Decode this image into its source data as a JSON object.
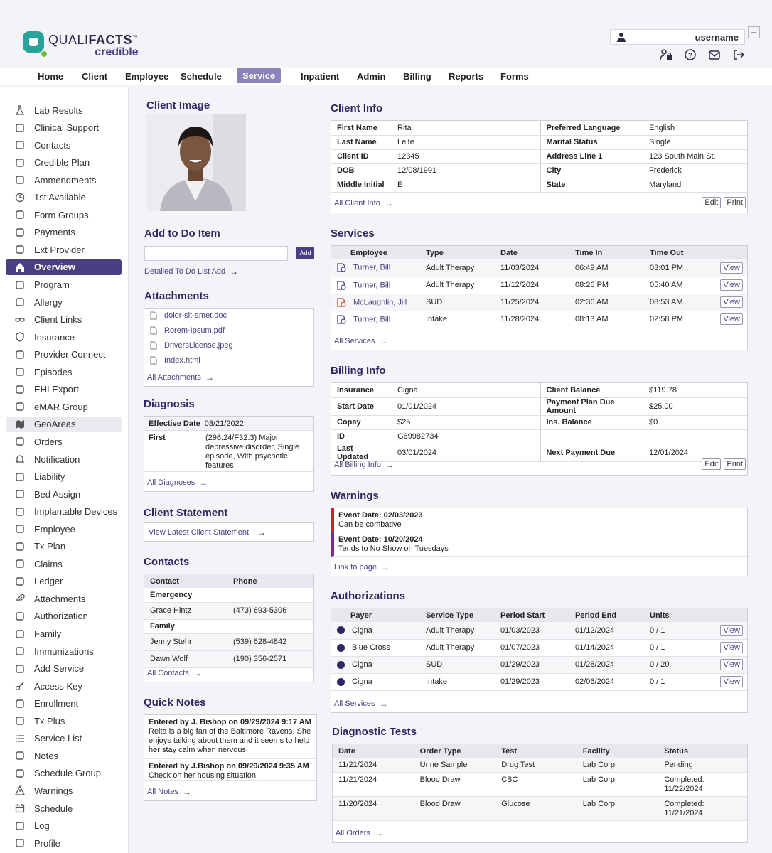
{
  "brand": {
    "name_light": "QUALI",
    "name_bold": "FACTS",
    "tm": "™",
    "product": "credible",
    "colors": {
      "primary": "#4b3f84",
      "accent": "#27a39a",
      "green": "#6bbf3c",
      "warning_red": "#d0202e",
      "warning_purple": "#7a2e8e"
    }
  },
  "user": {
    "username": "username",
    "add_label": "+",
    "icons": [
      "user-icon",
      "user-settings-icon",
      "help-icon",
      "mail-icon",
      "logout-icon"
    ]
  },
  "nav": {
    "items": [
      "Home",
      "Client",
      "Employee",
      "Schedule",
      "Service",
      "Inpatient",
      "Admin",
      "Billing",
      "Reports",
      "Forms"
    ],
    "active": "Service"
  },
  "sidebar": {
    "items": [
      {
        "label": "Lab Results",
        "icon": "flask-icon"
      },
      {
        "label": "Clinical Support",
        "icon": "hand-support-icon"
      },
      {
        "label": "Contacts",
        "icon": "contacts-icon"
      },
      {
        "label": "Credible Plan",
        "icon": "plan-icon"
      },
      {
        "label": "Ammendments",
        "icon": "document-icon"
      },
      {
        "label": "1st Available",
        "icon": "clock-icon"
      },
      {
        "label": "Form Groups",
        "icon": "forms-icon"
      },
      {
        "label": "Payments",
        "icon": "payment-icon"
      },
      {
        "label": "Ext Provider",
        "icon": "medkit-icon"
      },
      {
        "label": "Overview",
        "icon": "home-icon"
      },
      {
        "label": "Program",
        "icon": "building-icon"
      },
      {
        "label": "Allergy",
        "icon": "allergy-icon"
      },
      {
        "label": "Client Links",
        "icon": "link-icon"
      },
      {
        "label": "Insurance",
        "icon": "shield-icon"
      },
      {
        "label": "Provider Connect",
        "icon": "provider-icon"
      },
      {
        "label": "Episodes",
        "icon": "episodes-icon"
      },
      {
        "label": "EHI Export",
        "icon": "export-icon"
      },
      {
        "label": "eMAR Group",
        "icon": "group-icon"
      },
      {
        "label": "GeoAreas",
        "icon": "map-icon"
      },
      {
        "label": "Orders",
        "icon": "clipboard-icon"
      },
      {
        "label": "Notification",
        "icon": "bell-icon"
      },
      {
        "label": "Liability",
        "icon": "liability-icon"
      },
      {
        "label": "Bed Assign",
        "icon": "bed-icon"
      },
      {
        "label": "Implantable Devices",
        "icon": "device-icon"
      },
      {
        "label": "Employee",
        "icon": "badge-icon"
      },
      {
        "label": "Tx Plan",
        "icon": "tx-plan-icon"
      },
      {
        "label": "Claims",
        "icon": "claims-icon"
      },
      {
        "label": "Ledger",
        "icon": "ledger-icon"
      },
      {
        "label": "Attachments",
        "icon": "paperclip-icon"
      },
      {
        "label": "Authorization",
        "icon": "authorization-icon"
      },
      {
        "label": "Family",
        "icon": "family-icon"
      },
      {
        "label": "Immunizations",
        "icon": "syringe-icon"
      },
      {
        "label": "Add Service",
        "icon": "add-service-icon"
      },
      {
        "label": "Access Key",
        "icon": "key-icon"
      },
      {
        "label": "Enrollment",
        "icon": "enrollment-icon"
      },
      {
        "label": "Tx Plus",
        "icon": "tx-plus-icon"
      },
      {
        "label": "Service List",
        "icon": "list-icon"
      },
      {
        "label": "Notes",
        "icon": "notes-icon"
      },
      {
        "label": "Schedule Group",
        "icon": "schedule-group-icon"
      },
      {
        "label": "Warnings",
        "icon": "warning-icon"
      },
      {
        "label": "Schedule",
        "icon": "calendar-icon"
      },
      {
        "label": "Log",
        "icon": "log-icon"
      },
      {
        "label": "Profile",
        "icon": "profile-icon"
      }
    ],
    "active": "Overview",
    "highlighted": "GeoAreas"
  },
  "client_image": {
    "title": "Client Image"
  },
  "todo": {
    "title": "Add to Do Item",
    "input_value": "",
    "add_label": "Add",
    "link": "Detailed To Do List Add"
  },
  "attachments": {
    "title": "Attachments",
    "files": [
      {
        "name": "dolor-sit-amet.doc",
        "icon": "doc-file-icon"
      },
      {
        "name": "Rorem-Ipsum.pdf",
        "icon": "pdf-file-icon"
      },
      {
        "name": "DriversLicense.jpeg",
        "icon": "image-file-icon"
      },
      {
        "name": "Index.html",
        "icon": "html-file-icon"
      }
    ],
    "link": "All Attachments"
  },
  "diagnosis": {
    "title": "Diagnosis",
    "effective_label": "Effective Date",
    "effective_value": "03/21/2022",
    "first_label": "First",
    "first_value": "(296.24/F32.3) Major depressive disorder, Single episode, With psychotic features",
    "link": "All Diagnoses"
  },
  "client_statement": {
    "title": "Client Statement",
    "link": "View Latest Client Statement"
  },
  "contacts": {
    "title": "Contacts",
    "headers": [
      "Contact",
      "Phone"
    ],
    "groups": [
      {
        "name": "Emergency",
        "rows": [
          {
            "contact": "Grace Hintz",
            "phone": "(473) 693-5306"
          }
        ]
      },
      {
        "name": "Family",
        "rows": [
          {
            "contact": "Jenny Stehr",
            "phone": "(539) 628-4842"
          },
          {
            "contact": "Dawn Wolf",
            "phone": "(190) 356-2571"
          }
        ]
      }
    ],
    "link": "All Contacts"
  },
  "quick_notes": {
    "title": "Quick Notes",
    "notes": [
      {
        "header": "Entered by J. Bishop on 09/29/2024 9:17 AM",
        "text": "Reita is a big fan of the Baltimore Ravens. She enjoys talking about them and it seems to help her stay calm when nervous."
      },
      {
        "header": "Entered by J.Bishop on 09/29/2024 9:35 AM",
        "text": "Check on her housing situation."
      }
    ],
    "link": "All Notes"
  },
  "client_info": {
    "title": "Client Info",
    "left": [
      {
        "k": "First Name",
        "v": "Rita"
      },
      {
        "k": "Last Name",
        "v": "Leite"
      },
      {
        "k": "Client ID",
        "v": "12345"
      },
      {
        "k": "DOB",
        "v": "12/08/1991"
      },
      {
        "k": "Middle Initial",
        "v": "E"
      }
    ],
    "right": [
      {
        "k": "Preferred Language",
        "v": "English"
      },
      {
        "k": "Marital Status",
        "v": "Single"
      },
      {
        "k": "Address Line 1",
        "v": "123 South Main St."
      },
      {
        "k": "City",
        "v": "Frederick"
      },
      {
        "k": "State",
        "v": "Maryland"
      }
    ],
    "link": "All Client Info",
    "edit": "Edit",
    "print": "Print"
  },
  "services": {
    "title": "Services",
    "headers": [
      "Employee",
      "Type",
      "Date",
      "Time In",
      "Time Out"
    ],
    "rows": [
      {
        "employee": "Turner, Bill",
        "type": "Adult Therapy",
        "date": "11/03/2024",
        "in": "06:49 AM",
        "out": "03:01 PM",
        "view": "View",
        "icon_color": "#4b3f84"
      },
      {
        "employee": "Turner, Bill",
        "type": "Adult Therapy",
        "date": "11/12/2024",
        "in": "08:26 PM",
        "out": "05:40 AM",
        "view": "View",
        "icon_color": "#4b3f84"
      },
      {
        "employee": "McLaughlin, Jill",
        "type": "SUD",
        "date": "11/25/2024",
        "in": "02:36 AM",
        "out": "08:53 AM",
        "view": "View",
        "icon_color": "#c0502e"
      },
      {
        "employee": "Turner, Bill",
        "type": "Intake",
        "date": "11/28/2024",
        "in": "08:13 AM",
        "out": "02:58 PM",
        "view": "View",
        "icon_color": "#4b3f84"
      }
    ],
    "link": "All Services"
  },
  "billing": {
    "title": "Billing Info",
    "left": [
      {
        "k": "Insurance",
        "v": "Cigna"
      },
      {
        "k": "Start Date",
        "v": "01/01/2024"
      },
      {
        "k": "Copay",
        "v": "$25"
      },
      {
        "k": "ID",
        "v": "G69982734"
      },
      {
        "k": "Last Updated",
        "v": "03/01/2024"
      }
    ],
    "right": [
      {
        "k": "Client Balance",
        "v": "$119.78"
      },
      {
        "k": "Payment Plan Due Amount",
        "v": "$25.00"
      },
      {
        "k": "Ins. Balance",
        "v": "$0"
      },
      {
        "k": "",
        "v": ""
      },
      {
        "k": "Next Payment Due",
        "v": "12/01/2024"
      }
    ],
    "link": "All Billing Info",
    "edit": "Edit",
    "print": "Print"
  },
  "warnings": {
    "title": "Warnings",
    "items": [
      {
        "date": "Event Date: 02/03/2023",
        "text": "Can be combative"
      },
      {
        "date": "Event Date: 10/20/2024",
        "text": "Tends to No Show on Tuesdays"
      }
    ],
    "link": "Link to page"
  },
  "authorizations": {
    "title": "Authorizations",
    "headers": [
      "Payer",
      "Service Type",
      "Period Start",
      "Period End",
      "Units"
    ],
    "rows": [
      {
        "payer": "Cigna",
        "type": "Adult Therapy",
        "start": "01/03/2023",
        "end": "01/12/2024",
        "units": "0 / 1",
        "view": "View"
      },
      {
        "payer": "Blue Cross",
        "type": "Adult Therapy",
        "start": "01/07/2023",
        "end": "01/14/2024",
        "units": "0 / 1",
        "view": "View"
      },
      {
        "payer": "Cigna",
        "type": "SUD",
        "start": "01/29/2023",
        "end": "01/28/2024",
        "units": "0 / 20",
        "view": "View"
      },
      {
        "payer": "Cigna",
        "type": "Intake",
        "start": "01/29/2023",
        "end": "02/06/2024",
        "units": "0 / 1",
        "view": "View"
      }
    ],
    "link": "All Services"
  },
  "diagnostic_tests": {
    "title": "Diagnostic Tests",
    "headers": [
      "Date",
      "Order Type",
      "Test",
      "Facility",
      "Status"
    ],
    "rows": [
      {
        "date": "11/21/2024",
        "order": "Urine Sample",
        "test": "Drug Test",
        "facility": "Lab Corp",
        "status": "Pending"
      },
      {
        "date": "11/21/2024",
        "order": "Blood Draw",
        "test": "CBC",
        "facility": "Lab Corp",
        "status": "Completed: 11/22/2024"
      },
      {
        "date": "11/20/2024",
        "order": "Blood Draw",
        "test": "Glucose",
        "facility": "Lab Corp",
        "status": "Completed: 11/21/2024"
      }
    ],
    "link": "All Orders"
  }
}
